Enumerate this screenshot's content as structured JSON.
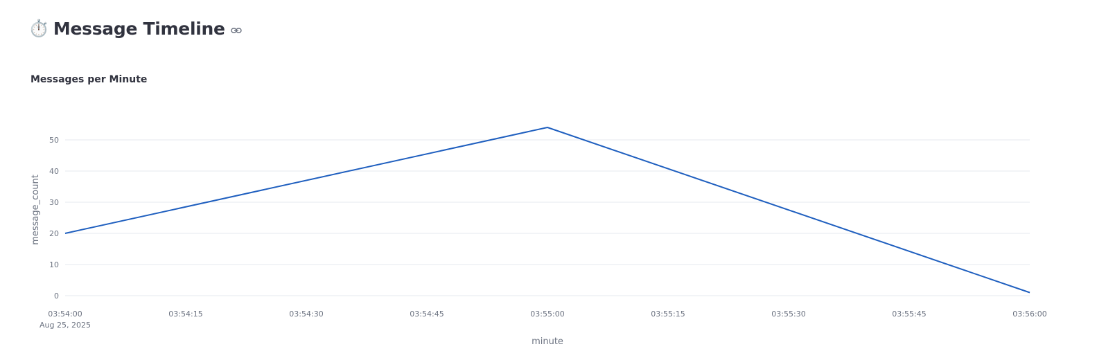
{
  "header": {
    "emoji": "⏱️",
    "title": "Message Timeline",
    "link_icon": "link-icon"
  },
  "chart_data": {
    "type": "line",
    "title": "Messages per Minute",
    "xlabel": "minute",
    "ylabel": "message_count",
    "x": [
      "03:54:00",
      "03:55:00",
      "03:56:00"
    ],
    "x_date": "Aug 25, 2025",
    "series": [
      {
        "values": [
          20,
          54,
          1
        ],
        "color": "#1f5fbf"
      }
    ],
    "ylim": [
      0,
      54
    ],
    "y_ticks": [
      "0",
      "10",
      "20",
      "30",
      "40",
      "50"
    ],
    "x_ticks": [
      "03:54:00",
      "03:54:15",
      "03:54:30",
      "03:54:45",
      "03:55:00",
      "03:55:15",
      "03:55:30",
      "03:55:45",
      "03:56:00"
    ],
    "x_range_seconds": [
      0,
      120
    ],
    "grid": true
  }
}
